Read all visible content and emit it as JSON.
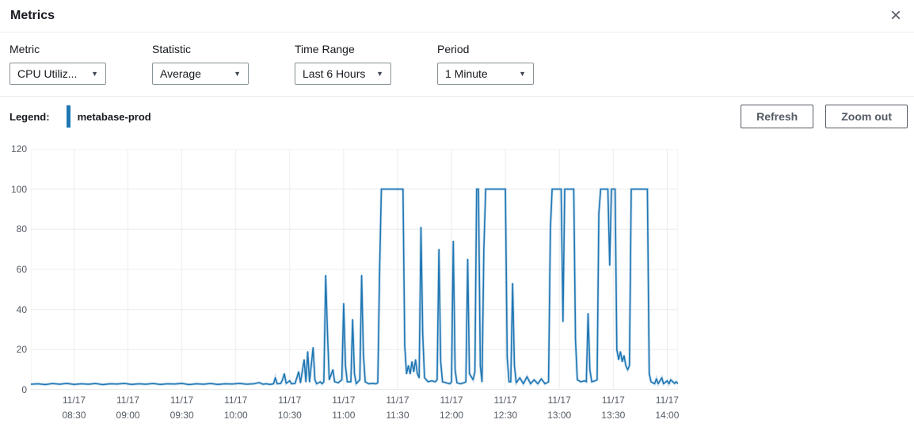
{
  "header": {
    "title": "Metrics"
  },
  "icons": {
    "close": "×",
    "caret_down": "▼"
  },
  "controls": [
    {
      "label": "Metric",
      "value": "CPU Utiliz..."
    },
    {
      "label": "Statistic",
      "value": "Average"
    },
    {
      "label": "Time Range",
      "value": "Last 6 Hours"
    },
    {
      "label": "Period",
      "value": "1 Minute"
    }
  ],
  "legend": {
    "label": "Legend:",
    "series_name": "metabase-prod",
    "color": "#1f77b4"
  },
  "actions": {
    "refresh": "Refresh",
    "zoom_out": "Zoom out"
  },
  "chart_data": {
    "type": "line",
    "title": "",
    "grid": true,
    "y_range": [
      0,
      120
    ],
    "y_ticks": [
      0,
      20,
      40,
      60,
      80,
      100,
      120
    ],
    "x_range": [
      0,
      360
    ],
    "x_ticks": [
      {
        "t": 24,
        "date": "11/17",
        "time": "08:30"
      },
      {
        "t": 54,
        "date": "11/17",
        "time": "09:00"
      },
      {
        "t": 84,
        "date": "11/17",
        "time": "09:30"
      },
      {
        "t": 114,
        "date": "11/17",
        "time": "10:00"
      },
      {
        "t": 144,
        "date": "11/17",
        "time": "10:30"
      },
      {
        "t": 174,
        "date": "11/17",
        "time": "11:00"
      },
      {
        "t": 204,
        "date": "11/17",
        "time": "11:30"
      },
      {
        "t": 234,
        "date": "11/17",
        "time": "12:00"
      },
      {
        "t": 264,
        "date": "11/17",
        "time": "12:30"
      },
      {
        "t": 294,
        "date": "11/17",
        "time": "13:00"
      },
      {
        "t": 324,
        "date": "11/17",
        "time": "13:30"
      },
      {
        "t": 354,
        "date": "11/17",
        "time": "14:00"
      }
    ],
    "series": [
      {
        "name": "metabase-prod",
        "color": "#1f77b4",
        "points": [
          [
            0,
            2.8
          ],
          [
            4,
            3.0
          ],
          [
            8,
            2.6
          ],
          [
            12,
            3.1
          ],
          [
            16,
            2.8
          ],
          [
            20,
            3.2
          ],
          [
            24,
            2.7
          ],
          [
            28,
            3.0
          ],
          [
            32,
            2.8
          ],
          [
            36,
            3.1
          ],
          [
            40,
            2.6
          ],
          [
            44,
            3.0
          ],
          [
            48,
            2.9
          ],
          [
            52,
            3.2
          ],
          [
            56,
            2.7
          ],
          [
            60,
            3.0
          ],
          [
            64,
            2.8
          ],
          [
            68,
            3.1
          ],
          [
            72,
            2.7
          ],
          [
            76,
            3.0
          ],
          [
            80,
            2.9
          ],
          [
            84,
            3.2
          ],
          [
            88,
            2.6
          ],
          [
            92,
            3.0
          ],
          [
            96,
            2.8
          ],
          [
            100,
            3.1
          ],
          [
            104,
            2.7
          ],
          [
            108,
            3.0
          ],
          [
            112,
            2.9
          ],
          [
            116,
            3.2
          ],
          [
            120,
            2.8
          ],
          [
            124,
            3.0
          ],
          [
            127,
            3.6
          ],
          [
            129,
            2.8
          ],
          [
            131,
            3.0
          ],
          [
            133,
            2.7
          ],
          [
            135,
            3.0
          ],
          [
            136,
            6.0
          ],
          [
            137,
            3.0
          ],
          [
            139,
            3.2
          ],
          [
            140,
            5.0
          ],
          [
            141,
            8.0
          ],
          [
            142,
            3.2
          ],
          [
            144,
            4.5
          ],
          [
            145,
            3.0
          ],
          [
            147,
            3.2
          ],
          [
            149,
            9.0
          ],
          [
            150,
            3.5
          ],
          [
            152,
            15.0
          ],
          [
            153,
            4.0
          ],
          [
            154,
            19.0
          ],
          [
            155,
            4.0
          ],
          [
            157,
            21.0
          ],
          [
            158,
            5.0
          ],
          [
            159,
            3.0
          ],
          [
            161,
            4.0
          ],
          [
            162,
            3.0
          ],
          [
            163,
            4.0
          ],
          [
            164,
            57.0
          ],
          [
            165,
            28.0
          ],
          [
            166,
            5.0
          ],
          [
            168,
            10.0
          ],
          [
            169,
            4.0
          ],
          [
            171,
            3.5
          ],
          [
            173,
            5.0
          ],
          [
            174,
            43.0
          ],
          [
            175,
            12.0
          ],
          [
            176,
            4.0
          ],
          [
            178,
            4.0
          ],
          [
            179,
            35.0
          ],
          [
            180,
            8.0
          ],
          [
            181,
            3.0
          ],
          [
            183,
            5.0
          ],
          [
            184,
            57.0
          ],
          [
            185,
            18.0
          ],
          [
            186,
            4.0
          ],
          [
            188,
            3.0
          ],
          [
            190,
            3.2
          ],
          [
            192,
            3.0
          ],
          [
            193,
            3.5
          ],
          [
            194,
            60.0
          ],
          [
            195,
            100.0
          ],
          [
            198,
            100.0
          ],
          [
            201,
            100.0
          ],
          [
            204,
            100.0
          ],
          [
            206,
            100.0
          ],
          [
            207,
            100.0
          ],
          [
            208,
            22.0
          ],
          [
            209,
            8.0
          ],
          [
            210,
            12.0
          ],
          [
            211,
            8.0
          ],
          [
            212,
            14.0
          ],
          [
            213,
            9.0
          ],
          [
            214,
            15.0
          ],
          [
            215,
            8.0
          ],
          [
            216,
            6.0
          ],
          [
            217,
            81.0
          ],
          [
            218,
            28.0
          ],
          [
            219,
            6.0
          ],
          [
            221,
            4.0
          ],
          [
            223,
            4.5
          ],
          [
            225,
            4.0
          ],
          [
            226,
            5.0
          ],
          [
            227,
            70.0
          ],
          [
            228,
            14.0
          ],
          [
            229,
            4.0
          ],
          [
            231,
            3.5
          ],
          [
            233,
            3.0
          ],
          [
            234,
            4.0
          ],
          [
            235,
            74.0
          ],
          [
            236,
            10.0
          ],
          [
            237,
            3.5
          ],
          [
            239,
            3.0
          ],
          [
            241,
            3.5
          ],
          [
            242,
            4.0
          ],
          [
            243,
            65.0
          ],
          [
            244,
            8.0
          ],
          [
            246,
            5.0
          ],
          [
            247,
            9.0
          ],
          [
            248,
            100.0
          ],
          [
            249,
            100.0
          ],
          [
            250,
            12.0
          ],
          [
            251,
            4.0
          ],
          [
            252,
            70.0
          ],
          [
            253,
            100.0
          ],
          [
            256,
            100.0
          ],
          [
            259,
            100.0
          ],
          [
            262,
            100.0
          ],
          [
            264,
            100.0
          ],
          [
            265,
            16.0
          ],
          [
            266,
            4.0
          ],
          [
            267,
            4.0
          ],
          [
            268,
            53.0
          ],
          [
            269,
            12.0
          ],
          [
            270,
            3.5
          ],
          [
            272,
            6.0
          ],
          [
            274,
            3.0
          ],
          [
            276,
            6.5
          ],
          [
            278,
            3.0
          ],
          [
            280,
            5.0
          ],
          [
            282,
            3.0
          ],
          [
            284,
            5.5
          ],
          [
            286,
            3.0
          ],
          [
            288,
            4.0
          ],
          [
            289,
            80.0
          ],
          [
            290,
            100.0
          ],
          [
            292,
            100.0
          ],
          [
            294,
            100.0
          ],
          [
            295,
            100.0
          ],
          [
            296,
            34.0
          ],
          [
            297,
            100.0
          ],
          [
            299,
            100.0
          ],
          [
            301,
            100.0
          ],
          [
            302,
            100.0
          ],
          [
            303,
            25.0
          ],
          [
            304,
            5.0
          ],
          [
            306,
            4.0
          ],
          [
            308,
            4.5
          ],
          [
            309,
            4.0
          ],
          [
            310,
            38.0
          ],
          [
            311,
            10.0
          ],
          [
            312,
            4.0
          ],
          [
            314,
            4.5
          ],
          [
            315,
            5.0
          ],
          [
            316,
            88.0
          ],
          [
            317,
            100.0
          ],
          [
            319,
            100.0
          ],
          [
            321,
            100.0
          ],
          [
            322,
            62.0
          ],
          [
            323,
            100.0
          ],
          [
            324,
            100.0
          ],
          [
            325,
            100.0
          ],
          [
            326,
            20.0
          ],
          [
            327,
            15.0
          ],
          [
            328,
            19.0
          ],
          [
            329,
            14.0
          ],
          [
            330,
            17.0
          ],
          [
            331,
            12.0
          ],
          [
            332,
            10.0
          ],
          [
            333,
            12.0
          ],
          [
            334,
            100.0
          ],
          [
            336,
            100.0
          ],
          [
            339,
            100.0
          ],
          [
            341,
            100.0
          ],
          [
            343,
            100.0
          ],
          [
            344,
            8.0
          ],
          [
            345,
            4.0
          ],
          [
            347,
            3.0
          ],
          [
            348,
            5.5
          ],
          [
            349,
            3.0
          ],
          [
            351,
            6.0
          ],
          [
            352,
            3.0
          ],
          [
            354,
            4.5
          ],
          [
            355,
            3.0
          ],
          [
            356,
            5.0
          ],
          [
            358,
            3.2
          ],
          [
            359,
            4.0
          ],
          [
            360,
            3.0
          ]
        ]
      }
    ]
  }
}
